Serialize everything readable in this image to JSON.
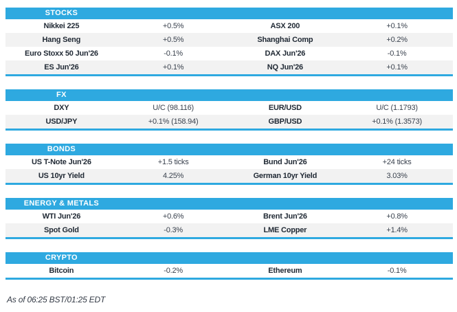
{
  "colors": {
    "accent": "#2EA9E0",
    "row_alt": "#F2F2F2",
    "label_text": "#212A35",
    "value_text": "#39414D",
    "header_text": "#FFFFFF"
  },
  "sections": [
    {
      "title": "STOCKS",
      "rows": [
        {
          "l1": "Nikkei 225",
          "v1": "+0.5%",
          "l2": "ASX 200",
          "v2": "+0.1%"
        },
        {
          "l1": "Hang Seng",
          "v1": "+0.5%",
          "l2": "Shanghai Comp",
          "v2": "+0.2%"
        },
        {
          "l1": "Euro Stoxx 50 Jun'26",
          "v1": "-0.1%",
          "l2": "DAX Jun'26",
          "v2": "-0.1%"
        },
        {
          "l1": "ES Jun'26",
          "v1": "+0.1%",
          "l2": "NQ Jun'26",
          "v2": "+0.1%"
        }
      ]
    },
    {
      "title": "FX",
      "rows": [
        {
          "l1": "DXY",
          "v1": "U/C (98.116)",
          "l2": "EUR/USD",
          "v2": "U/C (1.1793)"
        },
        {
          "l1": "USD/JPY",
          "v1": "+0.1% (158.94)",
          "l2": "GBP/USD",
          "v2": "+0.1% (1.3573)"
        }
      ]
    },
    {
      "title": "BONDS",
      "rows": [
        {
          "l1": "US T-Note Jun'26",
          "v1": "+1.5 ticks",
          "l2": "Bund Jun'26",
          "v2": "+24 ticks"
        },
        {
          "l1": "US 10yr Yield",
          "v1": "4.25%",
          "l2": "German 10yr Yield",
          "v2": "3.03%"
        }
      ]
    },
    {
      "title": "ENERGY & METALS",
      "rows": [
        {
          "l1": "WTI Jun'26",
          "v1": "+0.6%",
          "l2": "Brent Jun'26",
          "v2": "+0.8%"
        },
        {
          "l1": "Spot Gold",
          "v1": "-0.3%",
          "l2": "LME Copper",
          "v2": "+1.4%"
        }
      ]
    },
    {
      "title": "CRYPTO",
      "rows": [
        {
          "l1": "Bitcoin",
          "v1": "-0.2%",
          "l2": "Ethereum",
          "v2": "-0.1%"
        }
      ]
    }
  ],
  "footer": {
    "as_of": "As of 06:25 BST/01:25 EDT"
  }
}
